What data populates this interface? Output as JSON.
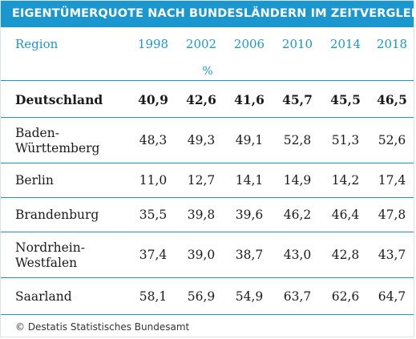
{
  "title": "EIGENTÜMERQUOTE NACH BUNDESLÄNDERN IM ZEITVERGLEICH",
  "header": {
    "region_label": "Region",
    "years": [
      "1998",
      "2002",
      "2006",
      "2010",
      "2014",
      "2018"
    ],
    "unit": "%"
  },
  "rows": [
    {
      "name": "Deutschland",
      "values": [
        "40,9",
        "42,6",
        "41,6",
        "45,7",
        "45,5",
        "46,5"
      ]
    },
    {
      "name": "Baden-\nWürttemberg",
      "values": [
        "48,3",
        "49,3",
        "49,1",
        "52,8",
        "51,3",
        "52,6"
      ]
    },
    {
      "name": "Berlin",
      "values": [
        "11,0",
        "12,7",
        "14,1",
        "14,9",
        "14,2",
        "17,4"
      ]
    },
    {
      "name": "Brandenburg",
      "values": [
        "35,5",
        "39,8",
        "39,6",
        "46,2",
        "46,4",
        "47,8"
      ]
    },
    {
      "name": "Nordrhein-\nWestfalen",
      "values": [
        "37,4",
        "39,0",
        "38,7",
        "43,0",
        "42,8",
        "43,7"
      ]
    },
    {
      "name": "Saarland",
      "values": [
        "58,1",
        "56,9",
        "54,9",
        "63,7",
        "62,6",
        "64,7"
      ]
    }
  ],
  "footer": "© Destatis Statistisches Bundesamt",
  "colors": {
    "accent": "#1b97cf"
  }
}
